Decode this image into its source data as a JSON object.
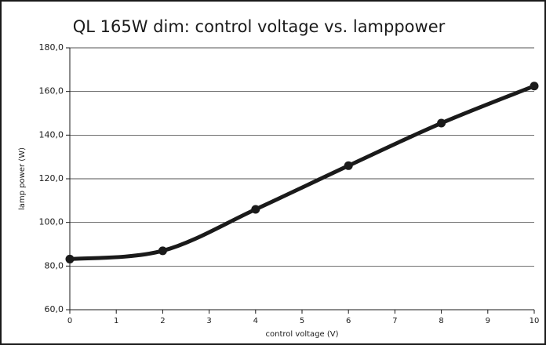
{
  "chart_data": {
    "type": "line",
    "title": "QL 165W dim: control voltage vs. lamppower",
    "x_label": "control voltage (V)",
    "y_label": "lamp power  (W)",
    "series": [
      {
        "name": "lamp power",
        "color": "#1a1a1a",
        "x": [
          0,
          2,
          4,
          6,
          8,
          10
        ],
        "values": [
          83.2,
          87,
          106,
          126,
          145.5,
          162.5
        ]
      }
    ],
    "xlim": [
      0,
      10
    ],
    "xticks": [
      0,
      1,
      2,
      3,
      4,
      5,
      6,
      7,
      8,
      9,
      10
    ],
    "ylim": [
      60,
      180
    ],
    "yticks": [
      {
        "value": 60,
        "label": "60,0"
      },
      {
        "value": 80,
        "label": "80,0"
      },
      {
        "value": 100,
        "label": "100,0"
      },
      {
        "value": 120,
        "label": "120,0"
      },
      {
        "value": 140,
        "label": "140,0"
      },
      {
        "value": 160,
        "label": "160,0"
      },
      {
        "value": 180,
        "label": "180,0"
      }
    ],
    "grid": true
  }
}
